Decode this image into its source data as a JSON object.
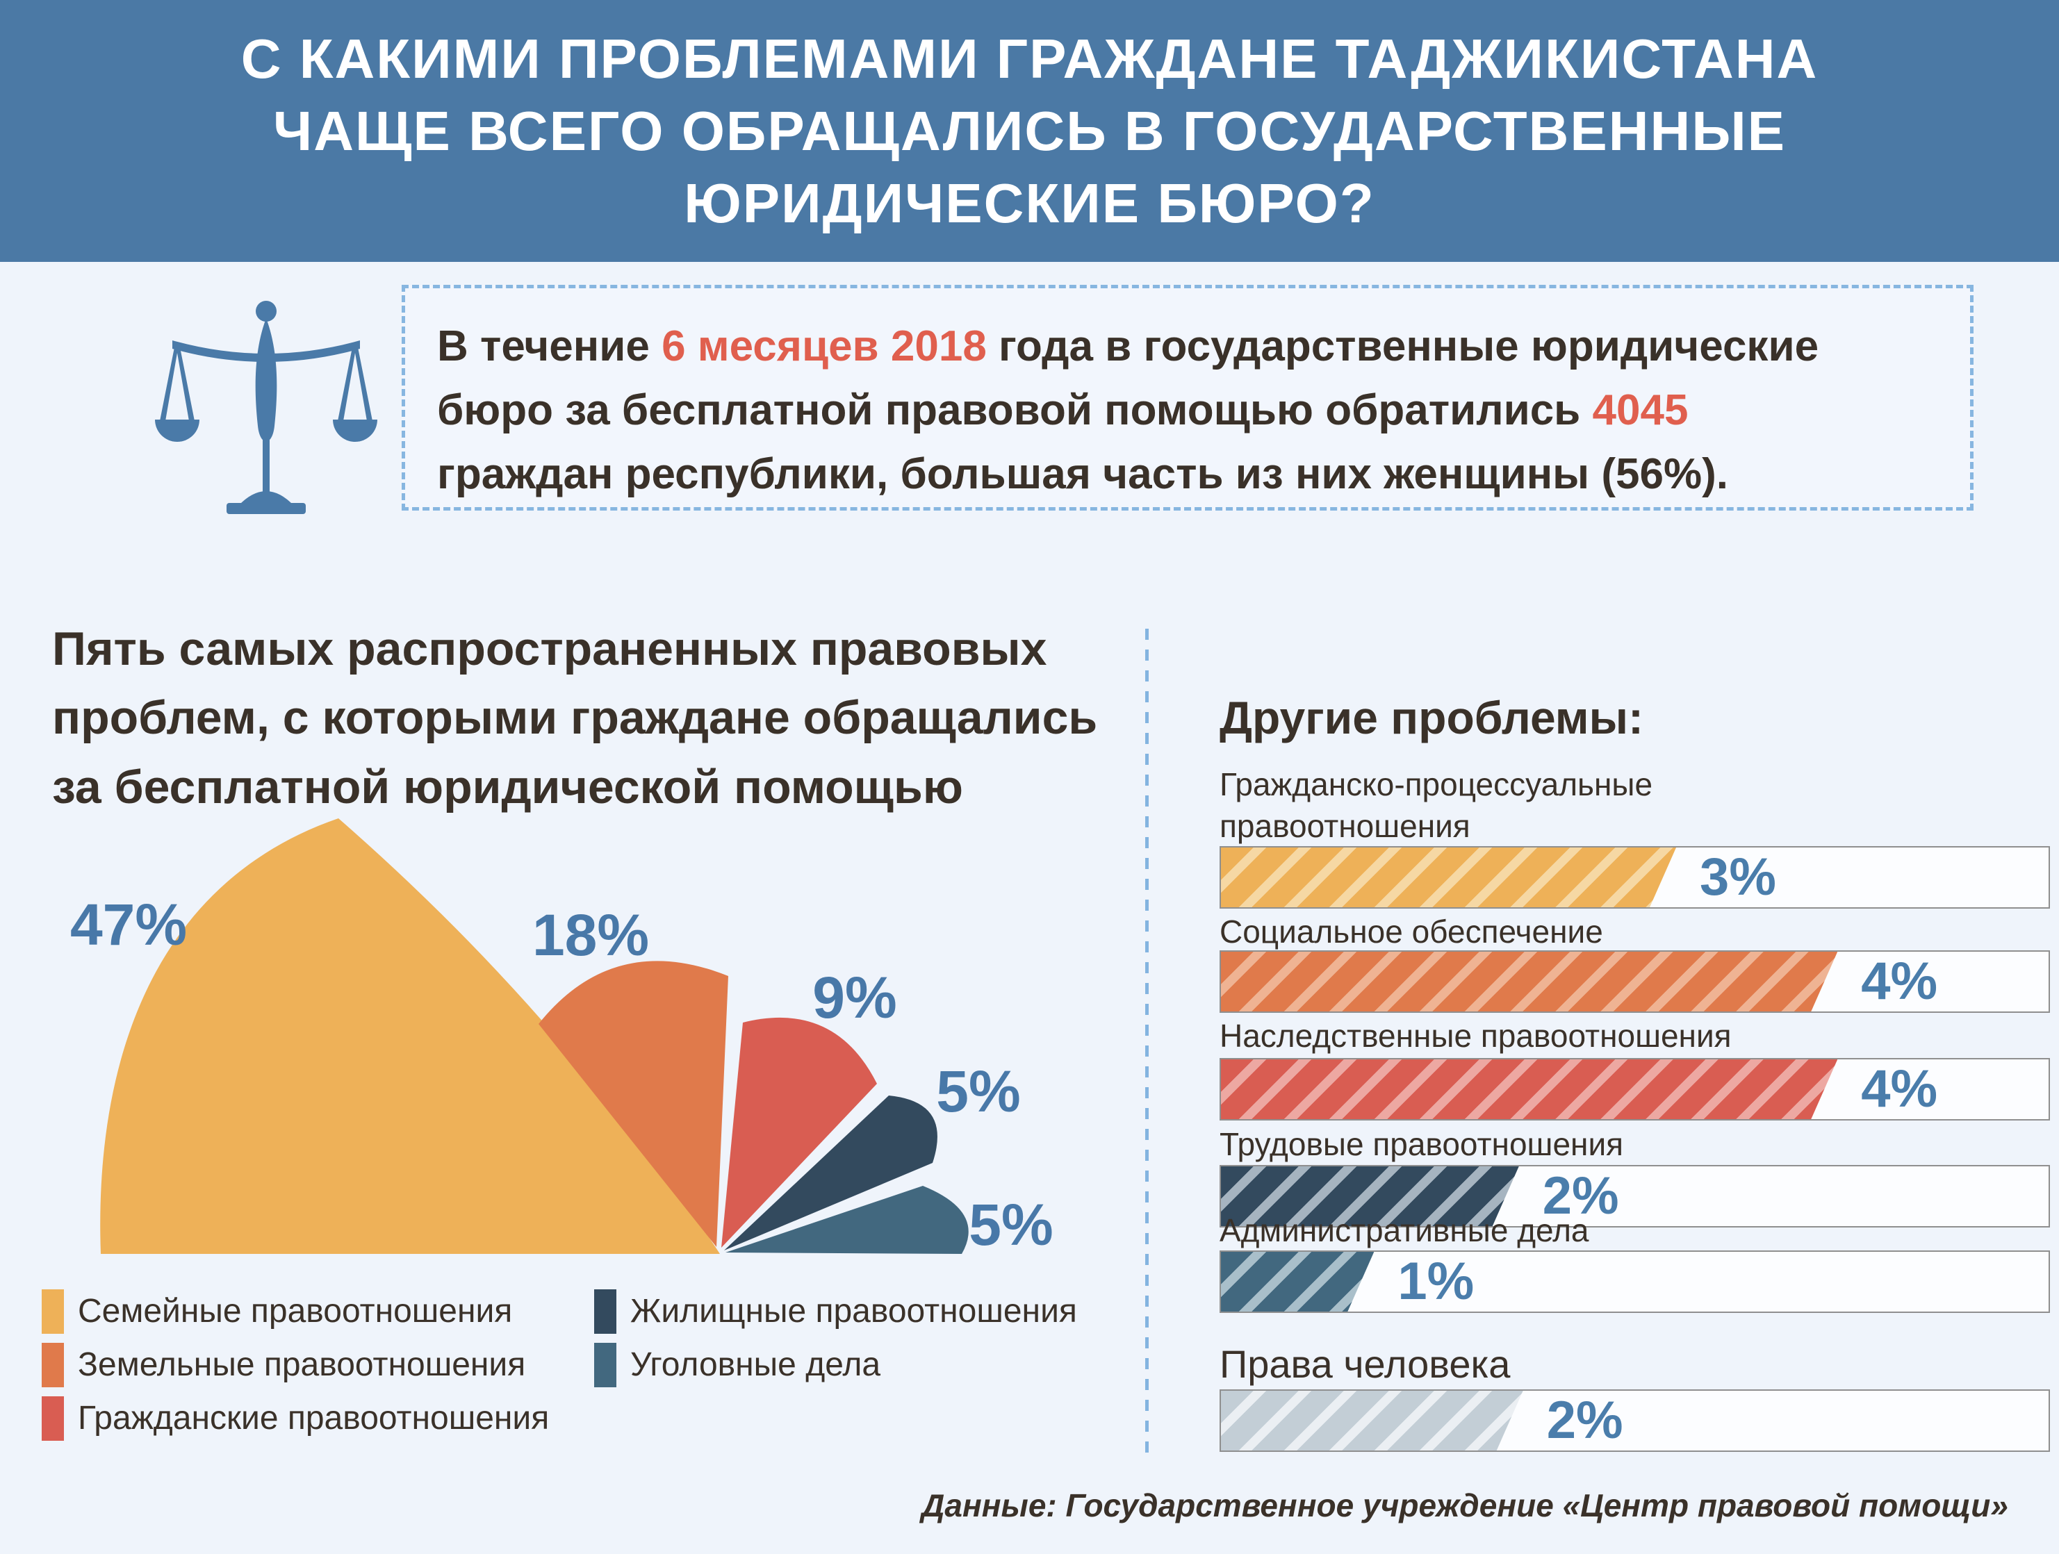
{
  "header": {
    "title_lines": [
      "С КАКИМИ ПРОБЛЕМАМИ ГРАЖДАНЕ ТАДЖИКИСТАНА",
      "ЧАЩЕ ВСЕГО ОБРАЩАЛИСЬ В ГОСУДАРСТВЕННЫЕ",
      "ЮРИДИЧЕСКИЕ БЮРО?"
    ]
  },
  "intro": {
    "icon": "scales-of-justice-icon",
    "segments": [
      {
        "text": "В течение ",
        "highlight": false
      },
      {
        "text": "6 месяцев 2018",
        "highlight": true
      },
      {
        "text": " года в государственные юридические\nбюро за бесплатной правовой помощью обратились ",
        "highlight": false
      },
      {
        "text": "4045",
        "highlight": true
      },
      {
        "text": "\nграждан республики, большая часть из них женщины (56%).",
        "highlight": false
      }
    ]
  },
  "palette": {
    "header_bg": "#4b79a5",
    "page_bg": "#eff4fb",
    "text_dark": "#3a3129",
    "accent_red": "#e05f4e",
    "accent_blue": "#4878a8",
    "divider_blue": "#83b4e0"
  },
  "left_chart": {
    "title": "Пять самых распространенных правовых\nпроблем, с которыми граждане обращались\nза бесплатной юридической помощью",
    "wedges": [
      {
        "label": "Семейные правоотношения",
        "value": 47,
        "value_label": "47%",
        "color": "#eeb158"
      },
      {
        "label": "Земельные правоотношения",
        "value": 18,
        "value_label": "18%",
        "color": "#e07a4b"
      },
      {
        "label": "Гражданские правоотношения",
        "value": 9,
        "value_label": "9%",
        "color": "#d95d52"
      },
      {
        "label": "Жилищные правоотношения",
        "value": 5,
        "value_label": "5%",
        "color": "#334a5e"
      },
      {
        "label": "Уголовные дела",
        "value": 5,
        "value_label": "5%",
        "color": "#42687f"
      }
    ]
  },
  "right_panel": {
    "title": "Другие проблемы:",
    "bars": [
      {
        "label": "Гражданско-процессуальные\nправоотношения",
        "value_label": "3%",
        "value": 3,
        "fill_percent": 55,
        "color": "#eeb158",
        "stripe": "#f6d8a4"
      },
      {
        "label": "Социальное обеспечение",
        "value_label": "4%",
        "value": 4,
        "fill_percent": 74.5,
        "color": "#e07a4b",
        "stripe": "#efb393"
      },
      {
        "label": "Наследственные правоотношения",
        "value_label": "4%",
        "value": 4,
        "fill_percent": 74.5,
        "color": "#d95d52",
        "stripe": "#eda8a2"
      },
      {
        "label": "Трудовые правоотношения",
        "value_label": "2%",
        "value": 2,
        "fill_percent": 36,
        "color": "#334a5e",
        "stripe": "#a6b4c0"
      },
      {
        "label": "Административные дела",
        "value_label": "1%",
        "value": 1,
        "fill_percent": 18.5,
        "color": "#42687f",
        "stripe": "#a9bfca"
      },
      {
        "label": "Права человека",
        "value_label": "2%",
        "value": 2,
        "fill_percent": 36.5,
        "color": "#c3ced6",
        "stripe": "#ebeff3"
      }
    ]
  },
  "footer": {
    "source": "Данные: Государственное учреждение «Центр правовой помощи»"
  },
  "chart_data": [
    {
      "type": "pie",
      "style": "fan",
      "title": "Пять самых распространенных правовых проблем, с которыми граждане обращались за бесплатной юридической помощью",
      "categories": [
        "Семейные правоотношения",
        "Земельные правоотношения",
        "Гражданские правоотношения",
        "Жилищные правоотношения",
        "Уголовные дела"
      ],
      "values": [
        47,
        18,
        9,
        5,
        5
      ],
      "unit": "%",
      "legend_position": "bottom"
    },
    {
      "type": "bar",
      "orientation": "horizontal",
      "title": "Другие проблемы:",
      "categories": [
        "Гражданско-процессуальные правоотношения",
        "Социальное обеспечение",
        "Наследственные правоотношения",
        "Трудовые правоотношения",
        "Административные дела",
        "Права человека"
      ],
      "values": [
        3,
        4,
        4,
        2,
        1,
        2
      ],
      "unit": "%",
      "annotation": "В течение 6 месяцев 2018 года в государственные юридические бюро за бесплатной правовой помощью обратились 4045 граждан республики, большая часть из них женщины (56%)."
    }
  ]
}
